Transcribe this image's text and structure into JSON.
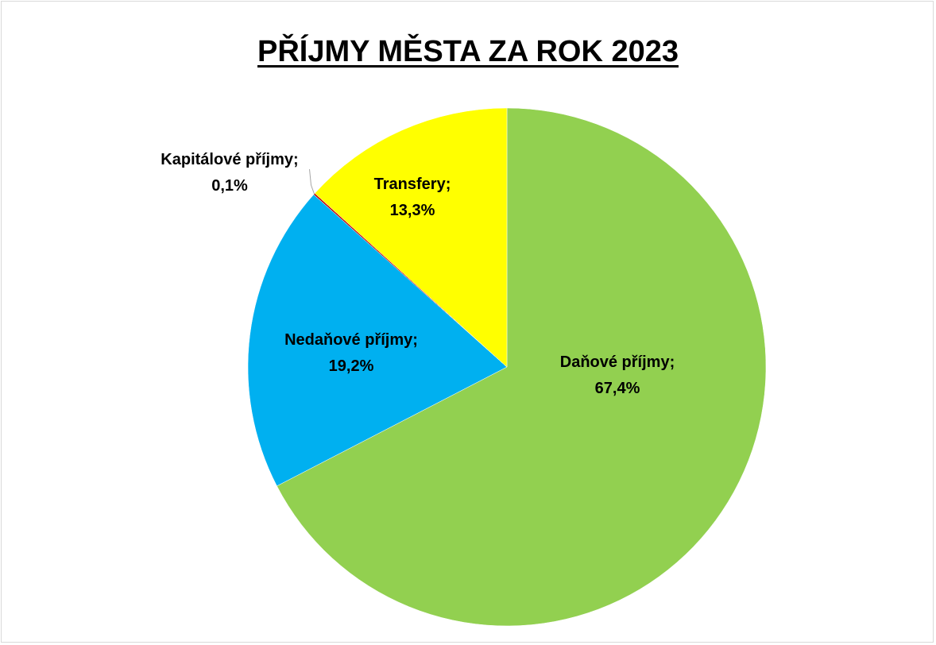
{
  "chart_data": {
    "type": "pie",
    "title": "PŘÍJMY MĚSTA ZA ROK 2023",
    "legend": "none",
    "slices": [
      {
        "name": "Daňové příjmy",
        "value": 67.4,
        "label": "Daňové příjmy;",
        "value_label": "67,4%",
        "color": "#92d050"
      },
      {
        "name": "Nedaňové příjmy",
        "value": 19.2,
        "label": "Nedaňové příjmy;",
        "value_label": "19,2%",
        "color": "#00b0f0"
      },
      {
        "name": "Kapitálové příjmy",
        "value": 0.1,
        "label": "Kapitálové příjmy;",
        "value_label": "0,1%",
        "color": "#c00000"
      },
      {
        "name": "Transfery",
        "value": 13.3,
        "label": "Transfery;",
        "value_label": "13,3%",
        "color": "#ffff00"
      }
    ]
  }
}
